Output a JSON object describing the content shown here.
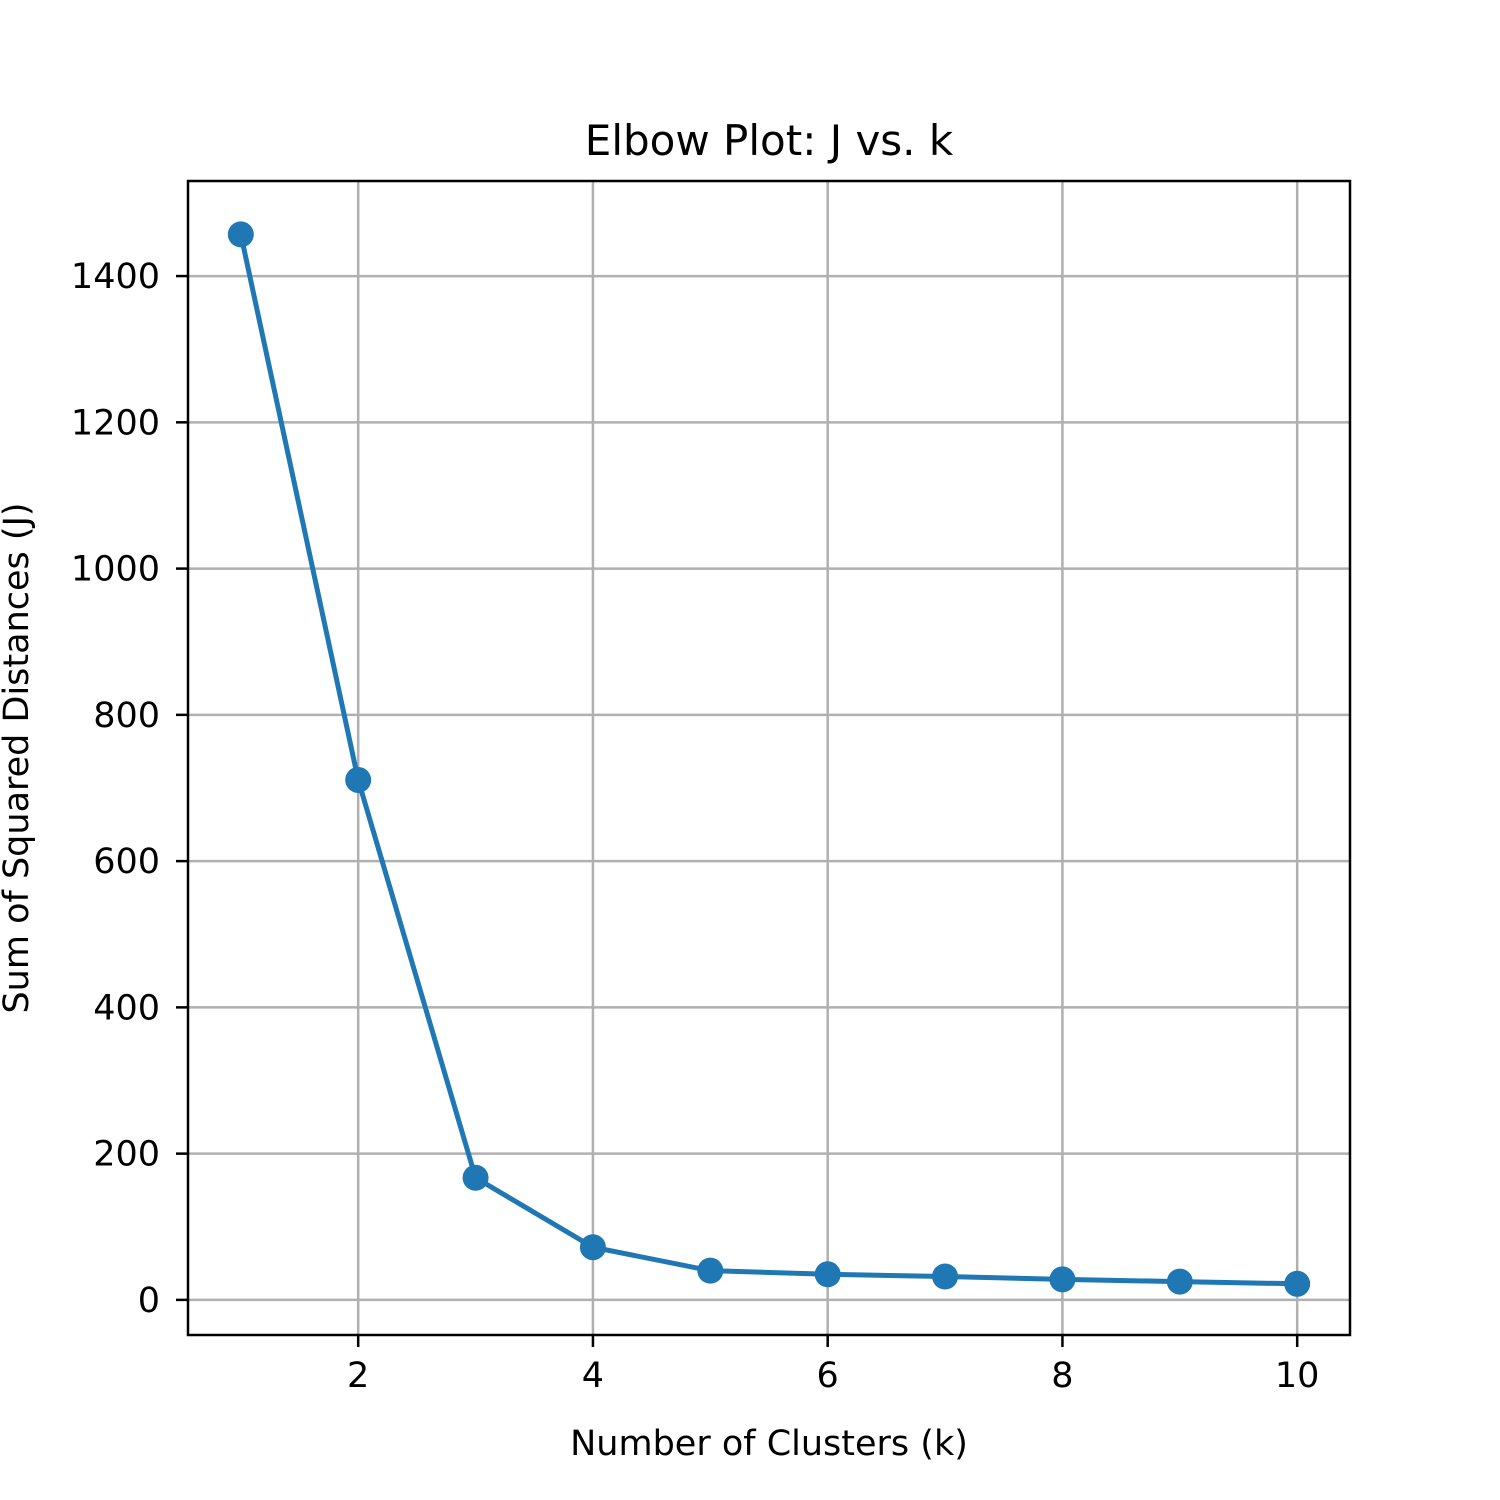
{
  "chart_data": {
    "type": "line",
    "title": "Elbow Plot: J vs. k",
    "xlabel": "Number of Clusters (k)",
    "ylabel": "Sum of Squared Distances (J)",
    "x": [
      1,
      2,
      3,
      4,
      5,
      6,
      7,
      8,
      9,
      10
    ],
    "series": [
      {
        "values": [
          1457,
          711,
          167,
          72,
          40,
          35,
          32,
          28,
          25,
          22
        ],
        "color": "#1f77b4",
        "marker": "circle"
      }
    ],
    "xlim": [
      0.55,
      10.45
    ],
    "ylim": [
      -48,
      1530
    ],
    "xticks": [
      2,
      4,
      6,
      8,
      10
    ],
    "yticks": [
      0,
      200,
      400,
      600,
      800,
      1000,
      1200,
      1400
    ],
    "grid": true,
    "legend": "none",
    "colors": {
      "axis": "#000000",
      "grid": "#b0b0b0",
      "line": "#1f77b4"
    }
  }
}
